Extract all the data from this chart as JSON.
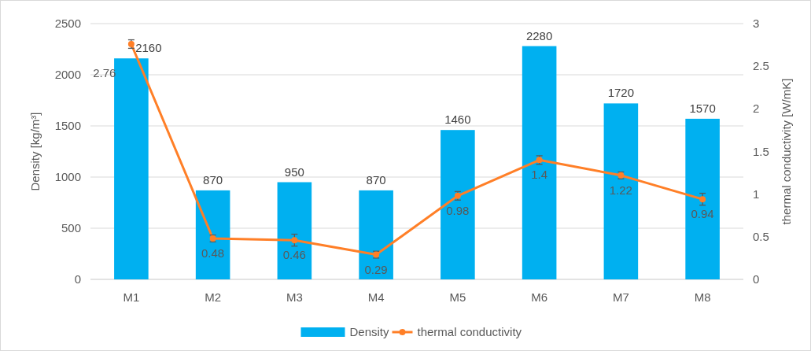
{
  "chart_data": {
    "type": "bar",
    "categories": [
      "M1",
      "M2",
      "M3",
      "M4",
      "M5",
      "M6",
      "M7",
      "M8"
    ],
    "series": [
      {
        "name": "Density",
        "color": "#00b0f0",
        "values": [
          2160,
          870,
          950,
          870,
          1460,
          2280,
          1720,
          1570
        ]
      },
      {
        "name": "thermal conductivity",
        "type": "line",
        "axis": "y2",
        "color": "#ff7f27",
        "values": [
          2.76,
          0.48,
          0.46,
          0.29,
          0.98,
          1.4,
          1.22,
          0.94
        ],
        "errors": [
          0.05,
          0.04,
          0.07,
          0.04,
          0.05,
          0.05,
          0.04,
          0.07
        ],
        "marker": "circle"
      }
    ],
    "ylabel": "Density [kg/m³]",
    "y2label": "thermal conductivity [W/mK]",
    "ylim": [
      0,
      2500
    ],
    "yticks": [
      0,
      500,
      1000,
      1500,
      2000,
      2500
    ],
    "y2lim": [
      0,
      3
    ],
    "y2ticks": [
      0,
      0.5,
      1,
      1.5,
      2,
      2.5,
      3
    ],
    "grid": "y",
    "legend": "bottom",
    "data_labels": true
  }
}
